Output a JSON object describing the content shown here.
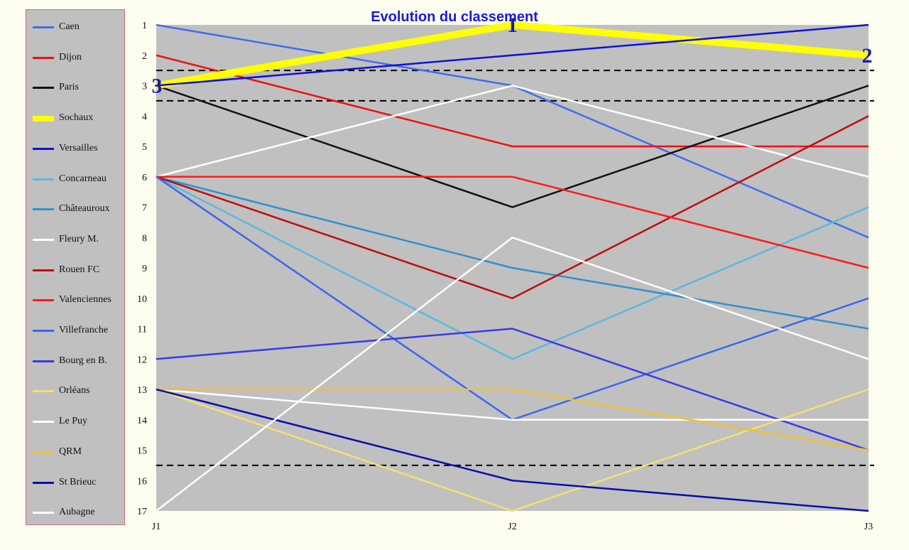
{
  "chart_data": {
    "type": "line",
    "title": "Evolution du classement",
    "x": [
      "J1",
      "J2",
      "J3"
    ],
    "y_ticks": [
      "1",
      "2",
      "3",
      "4",
      "5",
      "6",
      "7",
      "8",
      "9",
      "10",
      "11",
      "12",
      "13",
      "14",
      "15",
      "16",
      "17"
    ],
    "ylim": [
      1,
      17
    ],
    "y_inverted": true,
    "legend_position": "left",
    "cutoff_lines": [
      2.5,
      3.5,
      15.5
    ],
    "highlight_labels": [
      {
        "series": "Sochaux",
        "x": "J1",
        "value": "3"
      },
      {
        "series": "Sochaux",
        "x": "J2",
        "value": "1"
      },
      {
        "series": "Sochaux",
        "x": "J3",
        "value": "2"
      }
    ],
    "series": [
      {
        "name": "Caen",
        "color": "#3e6ef0",
        "width": 2.5,
        "values": [
          1,
          3,
          8
        ]
      },
      {
        "name": "Dijon",
        "color": "#ee1111",
        "width": 2.5,
        "values": [
          2,
          5,
          5
        ]
      },
      {
        "name": "Paris",
        "color": "#111111",
        "width": 2.5,
        "values": [
          3,
          7,
          3
        ]
      },
      {
        "name": "Sochaux",
        "color": "#ffff00",
        "width": 10,
        "values": [
          3,
          1,
          2
        ]
      },
      {
        "name": "Versailles",
        "color": "#1010d8",
        "width": 2.5,
        "values": [
          3,
          2,
          1
        ]
      },
      {
        "name": "Concarneau",
        "color": "#5ab8e0",
        "width": 2.5,
        "values": [
          6,
          12,
          7
        ]
      },
      {
        "name": "Châteauroux",
        "color": "#3090d0",
        "width": 2.5,
        "values": [
          6,
          9,
          11
        ]
      },
      {
        "name": "Fleury M.",
        "color": "#ffffff",
        "width": 2.5,
        "values": [
          6,
          3,
          6
        ]
      },
      {
        "name": "Rouen FC",
        "color": "#c00c0c",
        "width": 2.5,
        "values": [
          6,
          10,
          4
        ]
      },
      {
        "name": "Valenciennes",
        "color": "#ff1a1a",
        "width": 2.5,
        "values": [
          6,
          6,
          9
        ]
      },
      {
        "name": "Villefranche",
        "color": "#3a66ee",
        "width": 2.5,
        "values": [
          6,
          14,
          10
        ]
      },
      {
        "name": "Bourg en B.",
        "color": "#3a3ae6",
        "width": 2.5,
        "values": [
          12,
          11,
          15
        ]
      },
      {
        "name": "Orléans",
        "color": "#f5e070",
        "width": 2.5,
        "values": [
          13,
          17,
          13
        ]
      },
      {
        "name": "Le Puy",
        "color": "#ffffff",
        "width": 2.5,
        "values": [
          13,
          14,
          14
        ]
      },
      {
        "name": "QRM",
        "color": "#f0c030",
        "width": 2.5,
        "values": [
          13,
          13,
          15
        ]
      },
      {
        "name": "St Brieuc",
        "color": "#0c0cb0",
        "width": 2.5,
        "values": [
          13,
          16,
          17
        ]
      },
      {
        "name": "Aubagne",
        "color": "#ffffff",
        "width": 2.5,
        "values": [
          17,
          8,
          12
        ]
      }
    ]
  }
}
